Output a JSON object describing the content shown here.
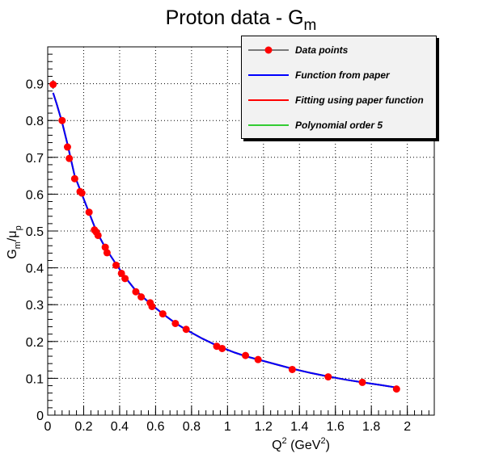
{
  "chart_data": {
    "type": "scatter",
    "title": "Proton data - G",
    "title_subscript": "m",
    "xlabel": {
      "main": "Q",
      "sup": "2",
      "units_prefix": " (GeV",
      "units_sup": "2",
      "units_suffix": ")"
    },
    "ylabel": {
      "g": "G",
      "g_sub": "m",
      "slash": "/",
      "mu": "μ",
      "mu_sub": "p"
    },
    "xlim": [
      0,
      2.15
    ],
    "ylim": [
      0,
      1.0
    ],
    "grid": true,
    "legend_position": "top-right",
    "xticks": [
      {
        "v": 0,
        "label": "0"
      },
      {
        "v": 0.2,
        "label": "0.2"
      },
      {
        "v": 0.4,
        "label": "0.4"
      },
      {
        "v": 0.6,
        "label": "0.6"
      },
      {
        "v": 0.8,
        "label": "0.8"
      },
      {
        "v": 1.0,
        "label": "1"
      },
      {
        "v": 1.2,
        "label": "1.2"
      },
      {
        "v": 1.4,
        "label": "1.4"
      },
      {
        "v": 1.6,
        "label": "1.6"
      },
      {
        "v": 1.8,
        "label": "1.8"
      },
      {
        "v": 2.0,
        "label": "2"
      }
    ],
    "yticks": [
      {
        "v": 0,
        "label": "0"
      },
      {
        "v": 0.1,
        "label": "0.1"
      },
      {
        "v": 0.2,
        "label": "0.2"
      },
      {
        "v": 0.3,
        "label": "0.3"
      },
      {
        "v": 0.4,
        "label": "0.4"
      },
      {
        "v": 0.5,
        "label": "0.5"
      },
      {
        "v": 0.6,
        "label": "0.6"
      },
      {
        "v": 0.7,
        "label": "0.7"
      },
      {
        "v": 0.8,
        "label": "0.8"
      },
      {
        "v": 0.9,
        "label": "0.9"
      }
    ],
    "series": [
      {
        "name": "Data points",
        "kind": "points",
        "color": "#ff0000",
        "x": [
          0.03,
          0.08,
          0.11,
          0.12,
          0.15,
          0.18,
          0.19,
          0.23,
          0.26,
          0.27,
          0.28,
          0.32,
          0.33,
          0.38,
          0.41,
          0.43,
          0.49,
          0.52,
          0.57,
          0.58,
          0.64,
          0.71,
          0.77,
          0.94,
          0.97,
          1.1,
          1.17,
          1.36,
          1.56,
          1.75,
          1.94
        ],
        "y": [
          0.898,
          0.8,
          0.728,
          0.697,
          0.642,
          0.607,
          0.603,
          0.551,
          0.503,
          0.497,
          0.488,
          0.456,
          0.441,
          0.407,
          0.385,
          0.371,
          0.335,
          0.321,
          0.305,
          0.295,
          0.275,
          0.249,
          0.233,
          0.187,
          0.181,
          0.162,
          0.151,
          0.124,
          0.104,
          0.089,
          0.071
        ],
        "err": [
          0.012,
          0.006,
          0.008,
          0.006,
          0.005,
          0.005,
          0.005,
          0.005,
          0.005,
          0.005,
          0.005,
          0.005,
          0.005,
          0.005,
          0.004,
          0.004,
          0.004,
          0.004,
          0.004,
          0.004,
          0.004,
          0.003,
          0.003,
          0.003,
          0.003,
          0.003,
          0.003,
          0.003,
          0.003,
          0.003,
          0.003
        ]
      },
      {
        "name": "Function from paper",
        "kind": "line",
        "color": "#0000ff"
      },
      {
        "name": "Fitting using paper function",
        "kind": "line",
        "color": "#ff0000"
      },
      {
        "name": "Polynomial order 5",
        "kind": "line",
        "color": "#33cc33"
      }
    ],
    "curve": {
      "x": [
        0.03,
        0.05,
        0.08,
        0.11,
        0.15,
        0.19,
        0.23,
        0.27,
        0.32,
        0.38,
        0.43,
        0.49,
        0.57,
        0.64,
        0.71,
        0.77,
        0.86,
        0.94,
        1.04,
        1.1,
        1.17,
        1.27,
        1.36,
        1.46,
        1.56,
        1.66,
        1.75,
        1.85,
        1.94
      ],
      "y": [
        0.875,
        0.845,
        0.795,
        0.735,
        0.65,
        0.6,
        0.55,
        0.5,
        0.455,
        0.41,
        0.375,
        0.338,
        0.303,
        0.275,
        0.25,
        0.232,
        0.208,
        0.189,
        0.17,
        0.16,
        0.151,
        0.138,
        0.126,
        0.115,
        0.105,
        0.096,
        0.089,
        0.082,
        0.075
      ]
    }
  }
}
